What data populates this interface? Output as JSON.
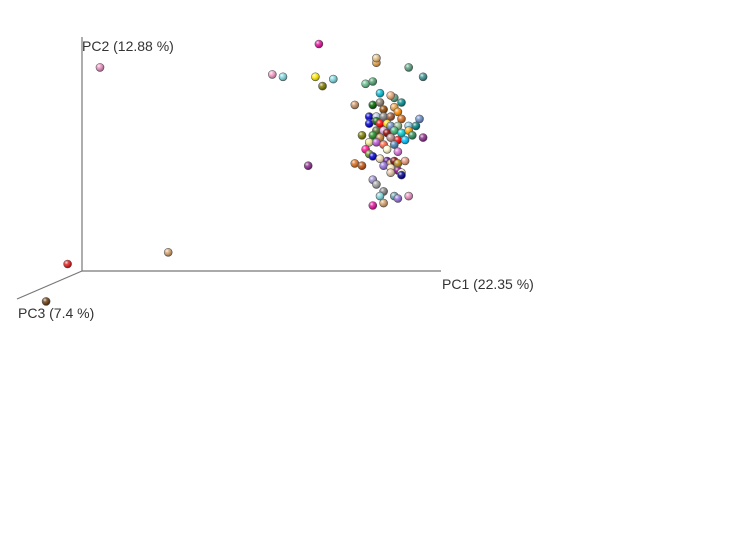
{
  "chart_data": {
    "type": "scatter",
    "projection": "3d",
    "axes": {
      "x": {
        "label": "PC1 (22.35 %)"
      },
      "y": {
        "label": "PC2 (12.88 %)"
      },
      "z": {
        "label": "PC3 (7.4 %)"
      }
    },
    "grid": false,
    "legend": "none",
    "points": [
      {
        "x": -1.0,
        "y": 0.85,
        "z": 1.0,
        "color": "#8b2d8b"
      },
      {
        "x": 0.05,
        "y": 0.87,
        "z": 0.0,
        "color": "#e88ebd"
      },
      {
        "x": 0.24,
        "y": 0.08,
        "z": 0.0,
        "color": "#d3a06b"
      },
      {
        "x": -0.04,
        "y": 0.03,
        "z": 0.0,
        "color": "#dd1c1c"
      },
      {
        "x": -0.1,
        "y": -0.13,
        "z": 0.0,
        "color": "#6b3c12"
      },
      {
        "x": 0.66,
        "y": 0.97,
        "z": 0.0,
        "color": "#e0119c"
      },
      {
        "x": 0.53,
        "y": 0.84,
        "z": 0.0,
        "color": "#f29bc5"
      },
      {
        "x": 0.56,
        "y": 0.83,
        "z": 0.0,
        "color": "#7ed6e0"
      },
      {
        "x": 0.65,
        "y": 0.83,
        "z": 0.0,
        "color": "#ffea00"
      },
      {
        "x": 0.67,
        "y": 0.79,
        "z": 0.0,
        "color": "#7a7a00"
      },
      {
        "x": 0.7,
        "y": 0.82,
        "z": 0.0,
        "color": "#7ed6e0"
      },
      {
        "x": 0.63,
        "y": 0.45,
        "z": 0.0,
        "color": "#8b2d8b"
      },
      {
        "x": 0.82,
        "y": 0.89,
        "z": 0.0,
        "color": "#e8a040"
      },
      {
        "x": 0.82,
        "y": 0.91,
        "z": 0.0,
        "color": "#e8c080"
      },
      {
        "x": 0.91,
        "y": 0.87,
        "z": 0.0,
        "color": "#5aa080"
      },
      {
        "x": 0.95,
        "y": 0.83,
        "z": 0.0,
        "color": "#3a9090"
      },
      {
        "x": 0.79,
        "y": 0.8,
        "z": 0.0,
        "color": "#6abf90"
      },
      {
        "x": 0.81,
        "y": 0.81,
        "z": 0.0,
        "color": "#50a070"
      },
      {
        "x": 0.83,
        "y": 0.76,
        "z": 0.0,
        "color": "#00bcd4"
      },
      {
        "x": 0.87,
        "y": 0.74,
        "z": 0.0,
        "color": "#5aa080"
      },
      {
        "x": 0.86,
        "y": 0.75,
        "z": 0.0,
        "color": "#e8a878"
      },
      {
        "x": 0.89,
        "y": 0.72,
        "z": 0.0,
        "color": "#008b8b"
      },
      {
        "x": 0.76,
        "y": 0.71,
        "z": 0.0,
        "color": "#c89060"
      },
      {
        "x": 0.81,
        "y": 0.71,
        "z": 0.0,
        "color": "#006400"
      },
      {
        "x": 0.83,
        "y": 0.72,
        "z": 0.0,
        "color": "#8b7d6b"
      },
      {
        "x": 0.84,
        "y": 0.69,
        "z": 0.0,
        "color": "#8b4500"
      },
      {
        "x": 0.87,
        "y": 0.7,
        "z": 0.0,
        "color": "#e8a040"
      },
      {
        "x": 0.88,
        "y": 0.68,
        "z": 0.0,
        "color": "#ff8c00"
      },
      {
        "x": 0.8,
        "y": 0.66,
        "z": 0.0,
        "color": "#0000cd"
      },
      {
        "x": 0.82,
        "y": 0.66,
        "z": 0.0,
        "color": "#b0c4de"
      },
      {
        "x": 0.84,
        "y": 0.66,
        "z": 0.0,
        "color": "#808080"
      },
      {
        "x": 0.86,
        "y": 0.66,
        "z": 0.0,
        "color": "#a0522d"
      },
      {
        "x": 0.89,
        "y": 0.65,
        "z": 0.0,
        "color": "#d2691e"
      },
      {
        "x": 0.94,
        "y": 0.65,
        "z": 0.0,
        "color": "#6b8ec8"
      },
      {
        "x": 0.8,
        "y": 0.63,
        "z": 0.0,
        "color": "#0000cd"
      },
      {
        "x": 0.82,
        "y": 0.64,
        "z": 0.0,
        "color": "#006400"
      },
      {
        "x": 0.83,
        "y": 0.63,
        "z": 0.0,
        "color": "#ff0000"
      },
      {
        "x": 0.85,
        "y": 0.63,
        "z": 0.0,
        "color": "#ffd700"
      },
      {
        "x": 0.86,
        "y": 0.62,
        "z": 0.0,
        "color": "#6b8ec8"
      },
      {
        "x": 0.88,
        "y": 0.62,
        "z": 0.0,
        "color": "#8fbc8f"
      },
      {
        "x": 0.91,
        "y": 0.62,
        "z": 0.0,
        "color": "#87ceeb"
      },
      {
        "x": 0.93,
        "y": 0.62,
        "z": 0.0,
        "color": "#008080"
      },
      {
        "x": 0.82,
        "y": 0.6,
        "z": 0.0,
        "color": "#556b2f"
      },
      {
        "x": 0.84,
        "y": 0.6,
        "z": 0.0,
        "color": "#dda0dd"
      },
      {
        "x": 0.85,
        "y": 0.59,
        "z": 0.0,
        "color": "#8b0000"
      },
      {
        "x": 0.87,
        "y": 0.6,
        "z": 0.0,
        "color": "#3cb371"
      },
      {
        "x": 0.89,
        "y": 0.59,
        "z": 0.0,
        "color": "#00ced1"
      },
      {
        "x": 0.91,
        "y": 0.6,
        "z": 0.0,
        "color": "#ffa500"
      },
      {
        "x": 0.92,
        "y": 0.58,
        "z": 0.0,
        "color": "#2e8b57"
      },
      {
        "x": 0.95,
        "y": 0.57,
        "z": 0.0,
        "color": "#8b2d8b"
      },
      {
        "x": 0.78,
        "y": 0.58,
        "z": 0.0,
        "color": "#7a7a00"
      },
      {
        "x": 0.81,
        "y": 0.58,
        "z": 0.0,
        "color": "#228b22"
      },
      {
        "x": 0.83,
        "y": 0.57,
        "z": 0.0,
        "color": "#cd853f"
      },
      {
        "x": 0.86,
        "y": 0.57,
        "z": 0.0,
        "color": "#bc8f8f"
      },
      {
        "x": 0.88,
        "y": 0.56,
        "z": 0.0,
        "color": "#ff0000"
      },
      {
        "x": 0.9,
        "y": 0.56,
        "z": 0.0,
        "color": "#00bfff"
      },
      {
        "x": 0.8,
        "y": 0.55,
        "z": 0.0,
        "color": "#f0e68c"
      },
      {
        "x": 0.82,
        "y": 0.55,
        "z": 0.0,
        "color": "#ba55d3"
      },
      {
        "x": 0.84,
        "y": 0.54,
        "z": 0.0,
        "color": "#ff6347"
      },
      {
        "x": 0.87,
        "y": 0.54,
        "z": 0.0,
        "color": "#4682b4"
      },
      {
        "x": 0.85,
        "y": 0.52,
        "z": 0.0,
        "color": "#fffacd"
      },
      {
        "x": 0.88,
        "y": 0.51,
        "z": 0.0,
        "color": "#da70d6"
      },
      {
        "x": 0.79,
        "y": 0.52,
        "z": 0.0,
        "color": "#ff1493"
      },
      {
        "x": 0.8,
        "y": 0.5,
        "z": 0.0,
        "color": "#6b8e23"
      },
      {
        "x": 0.81,
        "y": 0.49,
        "z": 0.0,
        "color": "#0000cd"
      },
      {
        "x": 0.83,
        "y": 0.48,
        "z": 0.0,
        "color": "#f5deb3"
      },
      {
        "x": 0.85,
        "y": 0.47,
        "z": 0.0,
        "color": "#4b0082"
      },
      {
        "x": 0.86,
        "y": 0.46,
        "z": 0.0,
        "color": "#cd853f"
      },
      {
        "x": 0.87,
        "y": 0.47,
        "z": 0.0,
        "color": "#800000"
      },
      {
        "x": 0.88,
        "y": 0.46,
        "z": 0.0,
        "color": "#b8860b"
      },
      {
        "x": 0.9,
        "y": 0.47,
        "z": 0.0,
        "color": "#e9967a"
      },
      {
        "x": 0.84,
        "y": 0.45,
        "z": 0.0,
        "color": "#9370db"
      },
      {
        "x": 0.86,
        "y": 0.44,
        "z": 0.0,
        "color": "#ffe4b5"
      },
      {
        "x": 0.88,
        "y": 0.43,
        "z": 0.0,
        "color": "#8b008b"
      },
      {
        "x": 0.76,
        "y": 0.46,
        "z": 0.0,
        "color": "#e07020"
      },
      {
        "x": 0.78,
        "y": 0.45,
        "z": 0.0,
        "color": "#c05010"
      },
      {
        "x": 0.86,
        "y": 0.42,
        "z": 0.0,
        "color": "#e0c0a0"
      },
      {
        "x": 0.89,
        "y": 0.42,
        "z": 0.0,
        "color": "#fffacd"
      },
      {
        "x": 0.89,
        "y": 0.41,
        "z": 0.0,
        "color": "#00008b"
      },
      {
        "x": 0.81,
        "y": 0.39,
        "z": 0.0,
        "color": "#a090d0"
      },
      {
        "x": 0.82,
        "y": 0.37,
        "z": 0.0,
        "color": "#a0a0a0"
      },
      {
        "x": 0.84,
        "y": 0.34,
        "z": 0.0,
        "color": "#808080"
      },
      {
        "x": 0.83,
        "y": 0.32,
        "z": 0.0,
        "color": "#7ed6e0"
      },
      {
        "x": 0.87,
        "y": 0.32,
        "z": 0.0,
        "color": "#5aa0b0"
      },
      {
        "x": 0.88,
        "y": 0.31,
        "z": 0.0,
        "color": "#9370db"
      },
      {
        "x": 0.91,
        "y": 0.32,
        "z": 0.0,
        "color": "#e88ebd"
      },
      {
        "x": 0.84,
        "y": 0.29,
        "z": 0.0,
        "color": "#d3a06b"
      },
      {
        "x": 0.81,
        "y": 0.28,
        "z": 0.0,
        "color": "#e0119c"
      }
    ]
  }
}
